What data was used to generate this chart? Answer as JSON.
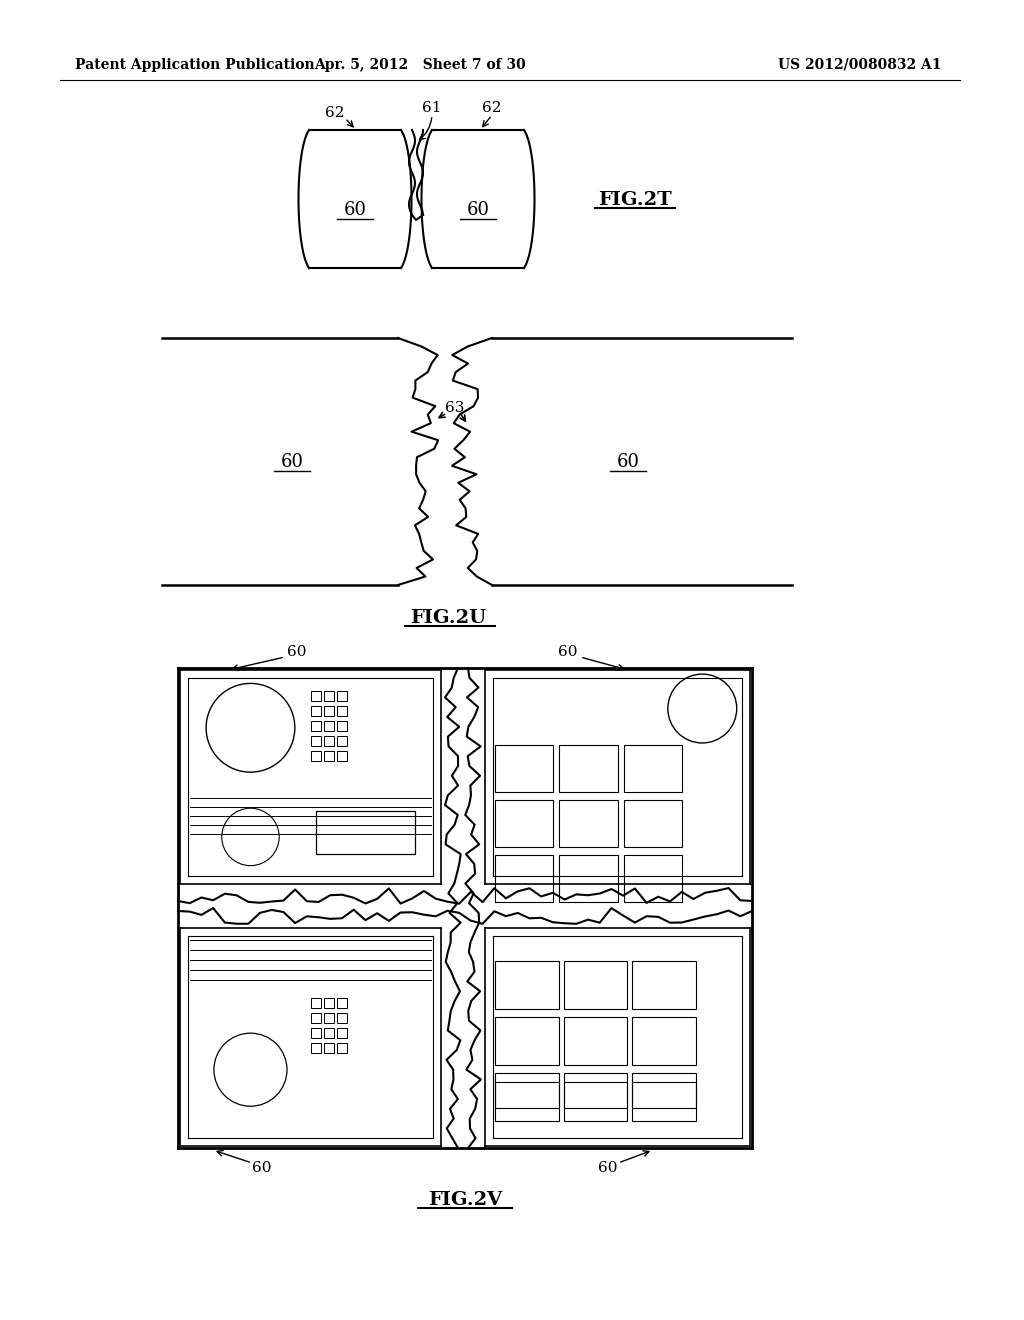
{
  "header_left": "Patent Application Publication",
  "header_mid": "Apr. 5, 2012   Sheet 7 of 30",
  "header_right": "US 2012/0080832 A1",
  "fig2t_label": "FIG.2T",
  "fig2u_label": "FIG.2U",
  "fig2v_label": "FIG.2V",
  "bg_color": "#ffffff",
  "line_color": "#000000"
}
